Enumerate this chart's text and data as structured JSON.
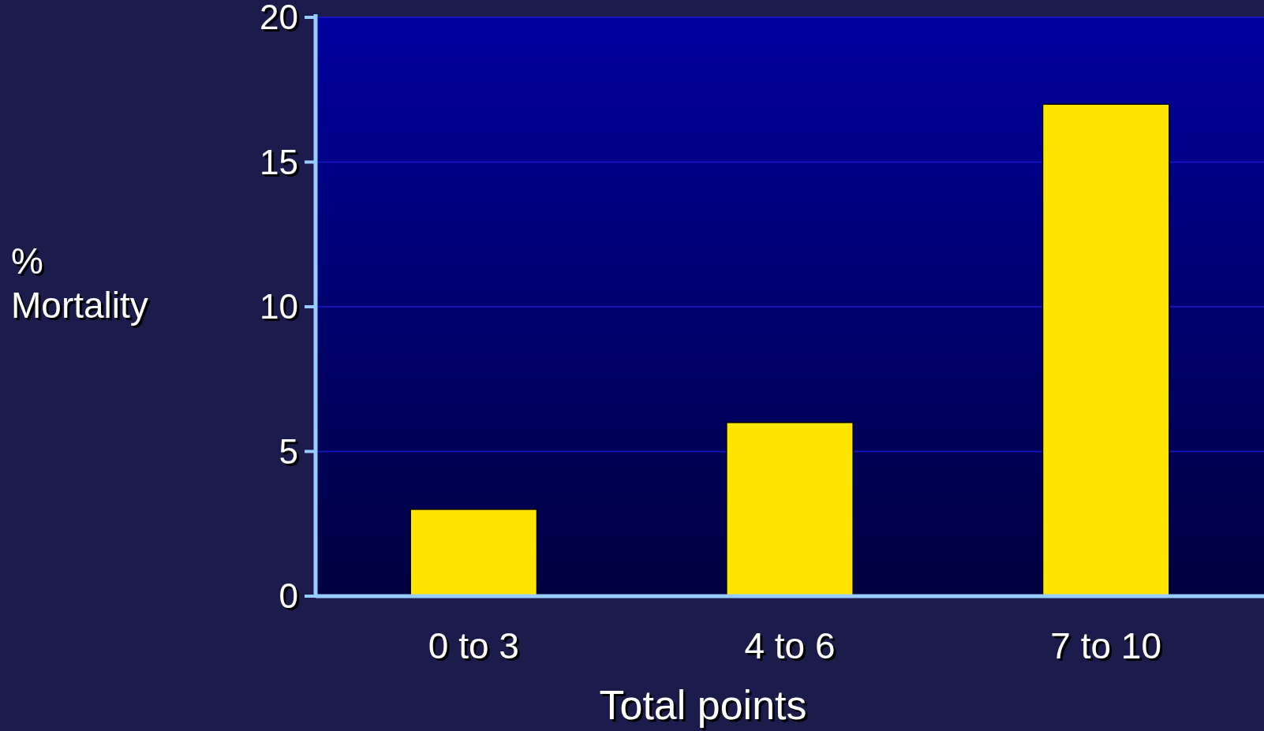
{
  "chart_data": {
    "type": "bar",
    "xlabel": "Total points",
    "ylabel": "% Mortality",
    "categories": [
      "0 to 3",
      "4 to 6",
      "7 to 10"
    ],
    "values": [
      3,
      6,
      17
    ],
    "color": "#ffe600",
    "ylim": [
      0,
      20
    ],
    "yticks": [
      0,
      5,
      10,
      15,
      20
    ],
    "grid": "y"
  }
}
